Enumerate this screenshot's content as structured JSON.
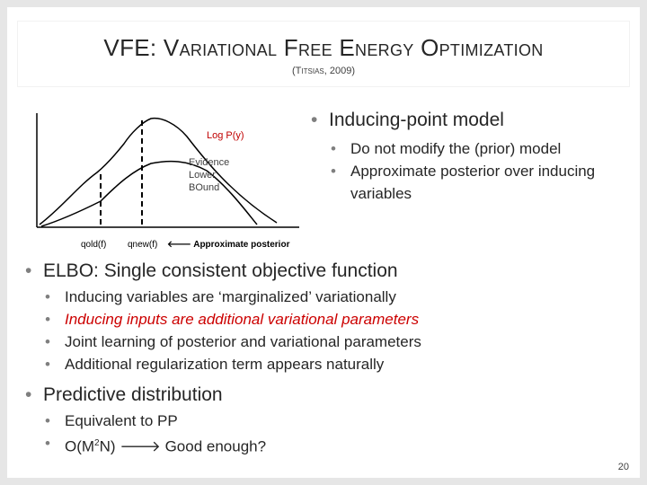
{
  "slide": {
    "title": "VFE: Variational Free Energy Optimization",
    "subtitle": "(Titsias, 2009)",
    "page_number": "20"
  },
  "diagram": {
    "log_p_label": "Log P(y)",
    "elbo_line1": "Evidence",
    "elbo_line2": "Lower",
    "elbo_line3": "BOund",
    "q_old_label": "qold(f)",
    "q_new_label": "qnew(f)",
    "approx_label": "🡐 Approximate posterior",
    "colors": {
      "curve": "#000000"
    }
  },
  "top_bullet": {
    "main": "Inducing-point model",
    "subs": [
      "Do not modify the (prior) model",
      "Approximate posterior over inducing variables"
    ]
  },
  "elbo_bullet": {
    "main": "ELBO: Single consistent objective function",
    "subs": [
      "Inducing variables are ‘marginalized’ variationally",
      "Inducing inputs are additional variational parameters",
      "Joint learning of posterior and variational parameters",
      "Additional regularization term appears naturally"
    ]
  },
  "pred_bullet": {
    "main": "Predictive distribution",
    "sub1": "Equivalent to PP",
    "sub2_prefix": "O(M",
    "sub2_sup": "2",
    "sub2_suffix": "N) 🡒 Good enough?"
  }
}
